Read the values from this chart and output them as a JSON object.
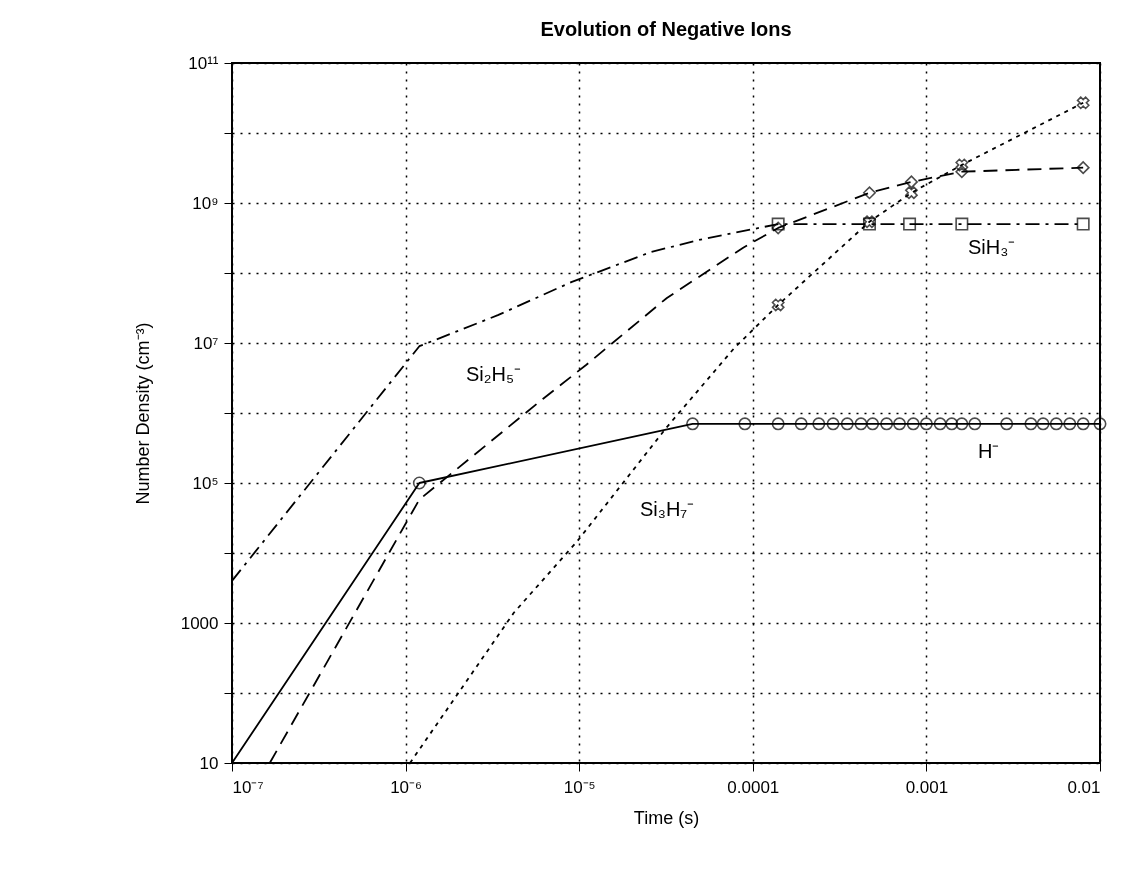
{
  "chart_data": {
    "type": "line",
    "title": "Evolution of Negative Ions",
    "xlabel": "Time (s)",
    "ylabel": "Number Density (cm⁻³)",
    "log": "xy",
    "grid": true,
    "xlim": [
      1e-07,
      0.01
    ],
    "ylim": [
      10,
      100000000000.0
    ],
    "xticks": [
      {
        "value": 1e-07,
        "label": "10⁻⁷"
      },
      {
        "value": 1e-06,
        "label": "10⁻⁶"
      },
      {
        "value": 1e-05,
        "label": "10⁻⁵"
      },
      0.0001,
      0.001,
      0.01
    ],
    "yticks": [
      10,
      {
        "value": 100,
        "label": null
      },
      1000,
      {
        "value": 10000,
        "label": null
      },
      {
        "value": 100000,
        "label": "10⁵"
      },
      {
        "value": 1000000,
        "label": null
      },
      {
        "value": 10000000,
        "label": "10⁷"
      },
      {
        "value": 100000000,
        "label": null
      },
      {
        "value": 1000000000,
        "label": "10⁹"
      },
      {
        "value": 10000000000,
        "label": null
      },
      {
        "value": 100000000000,
        "label": "10¹¹"
      }
    ],
    "series": [
      {
        "name": "H⁻",
        "color": "#000000",
        "line_style": "solid",
        "marker": "none",
        "x": [
          1e-07,
          1.2e-06,
          4.5e-05,
          0.01
        ],
        "values": [
          10,
          100000,
          700000,
          700000
        ]
      },
      {
        "type": "scatter",
        "color": "#000000",
        "marker": "circle",
        "x": [
          1.2e-06,
          4.5e-05,
          9e-05,
          0.00014,
          0.00019,
          0.00024,
          0.00029,
          0.00035,
          0.00042,
          0.00049,
          0.00059,
          0.0007,
          0.00084,
          0.001,
          0.0012,
          0.0014,
          0.0016,
          0.0019,
          0.0029,
          0.004,
          0.0047,
          0.0056,
          0.0067,
          0.008,
          0.01
        ],
        "values": [
          100000,
          700000,
          700000,
          700000,
          700000,
          700000,
          700000,
          700000,
          700000,
          700000,
          700000,
          700000,
          700000,
          700000,
          700000,
          700000,
          700000,
          700000,
          700000,
          700000,
          700000,
          700000,
          700000,
          700000,
          700000
        ]
      },
      {
        "name": "SiH₃⁻",
        "color": "#000000",
        "line_style": "dashdot",
        "marker": "none",
        "x": [
          1e-07,
          1.2e-06,
          3.4e-06,
          9e-06,
          2.6e-05,
          5e-05,
          0.00014,
          0.0005,
          0.008
        ],
        "values": [
          4000,
          9000000,
          25000000,
          74000000,
          200000000,
          300000000,
          500000000,
          500000000,
          500000000
        ]
      },
      {
        "type": "scatter",
        "color": "#000000",
        "marker": "square",
        "x": [
          0.00014,
          0.00047,
          0.0008,
          0.0016,
          0.008
        ],
        "values": [
          500000000,
          500000000,
          500000000,
          500000000,
          500000000
        ]
      },
      {
        "name": "Si₂H₅⁻",
        "color": "#000000",
        "line_style": "dashed",
        "marker": "none",
        "x": [
          1.65e-07,
          1.2e-06,
          6.2e-06,
          1.1e-05,
          3.2e-05,
          8.8e-05,
          0.00014,
          0.00047,
          0.00082,
          0.0016,
          0.008
        ],
        "values": [
          10,
          58000,
          1600000,
          4900000,
          44000000,
          230000000,
          440000000,
          1400000000,
          2000000000,
          2800000000,
          3200000000
        ]
      },
      {
        "type": "scatter",
        "color": "#000000",
        "marker": "diamond",
        "x": [
          0.00014,
          0.00047,
          0.00082,
          0.0016,
          0.008
        ],
        "values": [
          440000000,
          1400000000,
          2000000000,
          2800000000,
          3200000000
        ]
      },
      {
        "name": "Si₃H₇⁻",
        "color": "#000000",
        "line_style": "dotted",
        "marker": "none",
        "x": [
          1.06e-06,
          4.2e-06,
          9.8e-06,
          3.2e-05,
          7.8e-05,
          0.00014,
          0.00047,
          0.00082,
          0.0016,
          0.008
        ],
        "values": [
          10,
          1400,
          15000,
          630000,
          8400000,
          35000000,
          540000000,
          1400000000,
          3500000000,
          27000000000
        ]
      },
      {
        "type": "scatter",
        "color": "#000000",
        "marker": "cross",
        "x": [
          0.00014,
          0.00047,
          0.00082,
          0.0016,
          0.008
        ],
        "values": [
          35000000,
          540000000,
          1400000000,
          3500000000,
          27000000000
        ]
      }
    ]
  }
}
